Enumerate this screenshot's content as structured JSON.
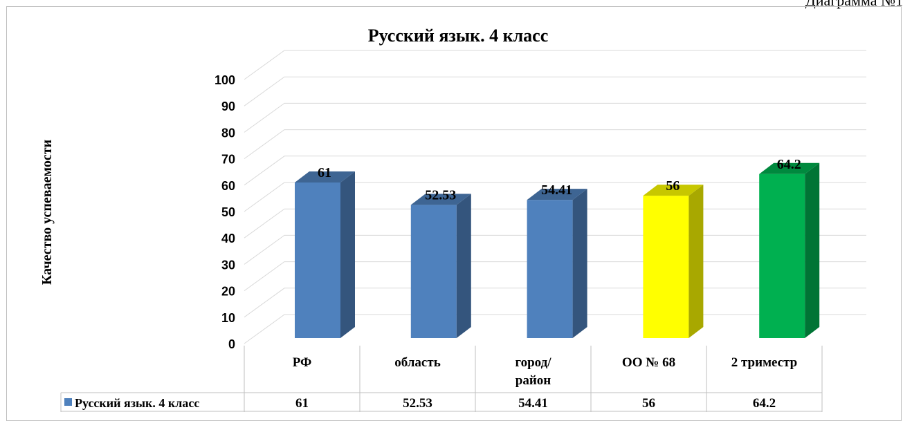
{
  "caption": "Диаграмма №1",
  "chart_data": {
    "type": "bar",
    "title": "Русский язык. 4 класс",
    "ylabel": "Качество успеваемости",
    "xlabel": "",
    "ylim": [
      0,
      100
    ],
    "yticks": [
      0,
      10,
      20,
      30,
      40,
      50,
      60,
      70,
      80,
      90,
      100
    ],
    "grid": true,
    "legend": "data-table",
    "categories": [
      {
        "lines": [
          "РФ"
        ]
      },
      {
        "lines": [
          "область"
        ]
      },
      {
        "lines": [
          "город/",
          "район"
        ]
      },
      {
        "lines": [
          "ОО № 68"
        ]
      },
      {
        "lines": [
          "2 триместр"
        ]
      }
    ],
    "series": [
      {
        "name": "Русский язык. 4 класс",
        "values": [
          61,
          52.53,
          54.41,
          56,
          64.2
        ],
        "labels": [
          "61",
          "52.53",
          "54.41",
          "56",
          "64.2"
        ],
        "colors": [
          "#4f81bd",
          "#4f81bd",
          "#4f81bd",
          "#ffff00",
          "#00b050"
        ]
      }
    ]
  }
}
